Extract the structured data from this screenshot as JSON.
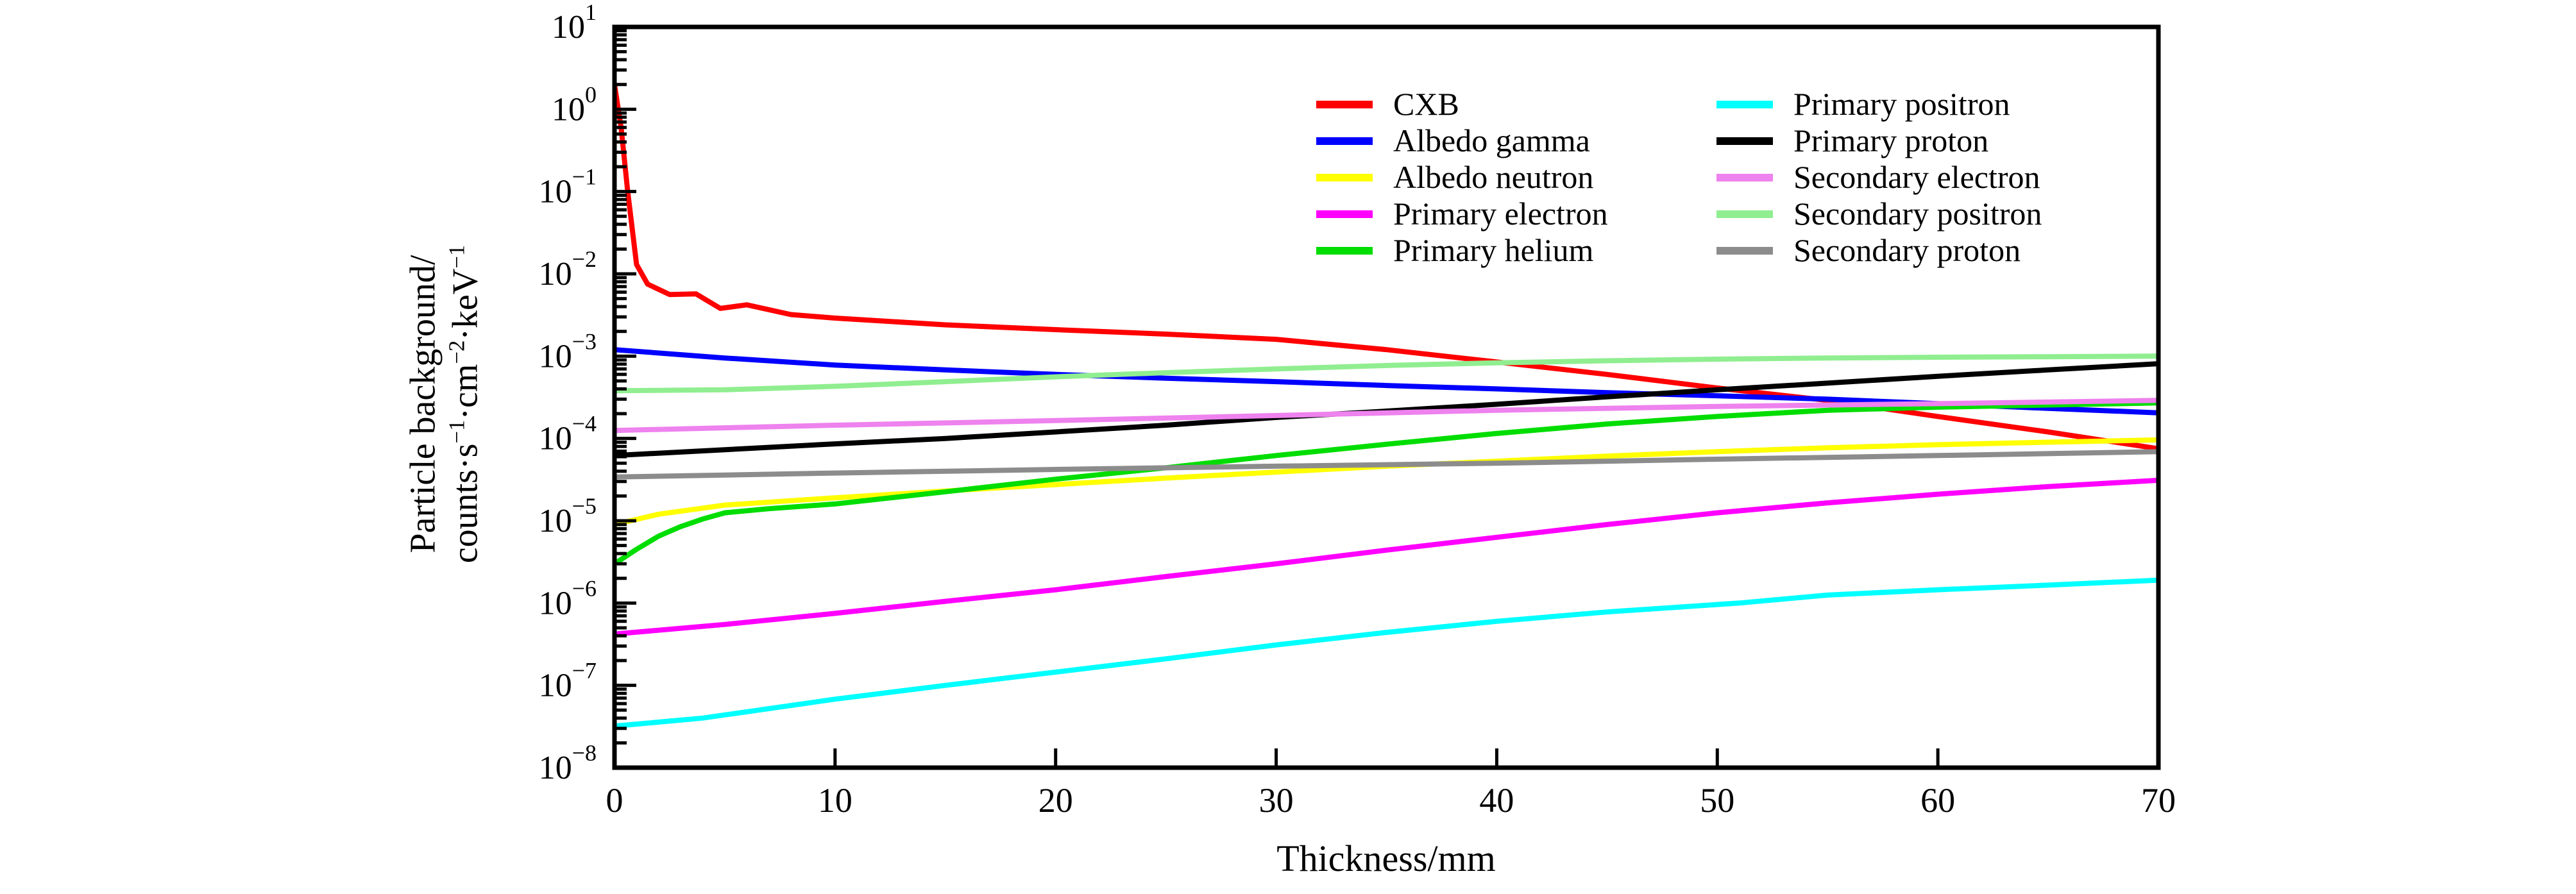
{
  "chart_data": {
    "type": "line",
    "title": "",
    "xlabel": "Thickness/mm",
    "ylabel_line1": "Particle background/",
    "ylabel_line2_tokens": [
      [
        "t",
        "counts·s"
      ],
      [
        "s",
        "−1"
      ],
      [
        "t",
        "·cm"
      ],
      [
        "s",
        "−2"
      ],
      [
        "t",
        "·keV"
      ],
      [
        "s",
        "−1"
      ]
    ],
    "xlim": [
      0,
      70
    ],
    "x_ticks": [
      0,
      10,
      20,
      30,
      40,
      50,
      60,
      70
    ],
    "y_scale": "log",
    "ylog_exponents": [
      1,
      0,
      -1,
      -2,
      -3,
      -4,
      -5,
      -6,
      -7,
      -8
    ],
    "ylim": [
      1e-08,
      10
    ],
    "grid": "off",
    "legend_position": "upper-center-inside, two columns",
    "frame_color": "#000000",
    "series": [
      {
        "name": "CXB",
        "color": "#ff0000",
        "points": [
          [
            0,
            2.0
          ],
          [
            0.3,
            0.6
          ],
          [
            0.6,
            0.1
          ],
          [
            1.0,
            0.013
          ],
          [
            1.5,
            0.0075
          ],
          [
            2.5,
            0.0056
          ],
          [
            3.7,
            0.0057
          ],
          [
            4.8,
            0.0038
          ],
          [
            6,
            0.0042
          ],
          [
            8,
            0.0032
          ],
          [
            10,
            0.0029
          ],
          [
            15,
            0.0024
          ],
          [
            20,
            0.0021
          ],
          [
            25,
            0.00185
          ],
          [
            30,
            0.0016
          ],
          [
            35,
            0.0012
          ],
          [
            40,
            0.00085
          ],
          [
            45,
            0.0006
          ],
          [
            50,
            0.00041
          ],
          [
            55,
            0.00029
          ],
          [
            60,
            0.000185
          ],
          [
            65,
            0.00012
          ],
          [
            70,
            7.5e-05
          ]
        ]
      },
      {
        "name": "Albedo gamma",
        "color": "#0000ff",
        "points": [
          [
            0,
            0.0012
          ],
          [
            5,
            0.00095
          ],
          [
            10,
            0.00078
          ],
          [
            15,
            0.00068
          ],
          [
            20,
            0.0006
          ],
          [
            25,
            0.00054
          ],
          [
            30,
            0.00049
          ],
          [
            35,
            0.00044
          ],
          [
            40,
            0.0004
          ],
          [
            45,
            0.00036
          ],
          [
            50,
            0.00033
          ],
          [
            55,
            0.0003
          ],
          [
            60,
            0.000265
          ],
          [
            65,
            0.000232
          ],
          [
            70,
            0.000205
          ]
        ]
      },
      {
        "name": "Albedo neutron",
        "color": "#ffff00",
        "points": [
          [
            0,
            9e-06
          ],
          [
            2,
            1.2e-05
          ],
          [
            5,
            1.55e-05
          ],
          [
            10,
            1.9e-05
          ],
          [
            15,
            2.3e-05
          ],
          [
            20,
            2.75e-05
          ],
          [
            25,
            3.3e-05
          ],
          [
            30,
            3.9e-05
          ],
          [
            35,
            4.6e-05
          ],
          [
            40,
            5.3e-05
          ],
          [
            45,
            6.1e-05
          ],
          [
            50,
            6.9e-05
          ],
          [
            55,
            7.7e-05
          ],
          [
            60,
            8.4e-05
          ],
          [
            65,
            9e-05
          ],
          [
            70,
            9.6e-05
          ]
        ]
      },
      {
        "name": "Primary electron",
        "color": "#ff00ff",
        "points": [
          [
            0,
            4.2e-07
          ],
          [
            5,
            5.5e-07
          ],
          [
            10,
            7.5e-07
          ],
          [
            15,
            1.05e-06
          ],
          [
            20,
            1.45e-06
          ],
          [
            25,
            2.1e-06
          ],
          [
            30,
            3e-06
          ],
          [
            35,
            4.4e-06
          ],
          [
            40,
            6.3e-06
          ],
          [
            45,
            9e-06
          ],
          [
            50,
            1.25e-05
          ],
          [
            55,
            1.65e-05
          ],
          [
            60,
            2.1e-05
          ],
          [
            65,
            2.6e-05
          ],
          [
            70,
            3.1e-05
          ]
        ]
      },
      {
        "name": "Primary helium",
        "color": "#00dd00",
        "points": [
          [
            0,
            3e-06
          ],
          [
            1,
            4.5e-06
          ],
          [
            2,
            6.5e-06
          ],
          [
            3,
            8.5e-06
          ],
          [
            4,
            1.05e-05
          ],
          [
            5,
            1.25e-05
          ],
          [
            7,
            1.4e-05
          ],
          [
            10,
            1.6e-05
          ],
          [
            15,
            2.25e-05
          ],
          [
            20,
            3.2e-05
          ],
          [
            25,
            4.4e-05
          ],
          [
            30,
            6.2e-05
          ],
          [
            35,
            8.5e-05
          ],
          [
            40,
            0.000115
          ],
          [
            45,
            0.00015
          ],
          [
            50,
            0.000185
          ],
          [
            55,
            0.00022
          ],
          [
            60,
            0.00024
          ],
          [
            65,
            0.000255
          ],
          [
            70,
            0.00027
          ]
        ]
      },
      {
        "name": "Primary positron",
        "color": "#00ffff",
        "points": [
          [
            0,
            3.2e-08
          ],
          [
            4,
            4e-08
          ],
          [
            10,
            6.8e-08
          ],
          [
            15,
            1e-07
          ],
          [
            20,
            1.45e-07
          ],
          [
            25,
            2.1e-07
          ],
          [
            30,
            3.1e-07
          ],
          [
            35,
            4.4e-07
          ],
          [
            40,
            6e-07
          ],
          [
            45,
            7.8e-07
          ],
          [
            51,
            1e-06
          ],
          [
            55,
            1.25e-06
          ],
          [
            60,
            1.45e-06
          ],
          [
            65,
            1.65e-06
          ],
          [
            70,
            1.9e-06
          ]
        ]
      },
      {
        "name": "Primary proton",
        "color": "#000000",
        "points": [
          [
            0,
            6.2e-05
          ],
          [
            5,
            7.3e-05
          ],
          [
            10,
            8.6e-05
          ],
          [
            15,
            0.0001
          ],
          [
            20,
            0.00012
          ],
          [
            25,
            0.000145
          ],
          [
            30,
            0.00018
          ],
          [
            35,
            0.000215
          ],
          [
            40,
            0.00026
          ],
          [
            45,
            0.00032
          ],
          [
            50,
            0.00039
          ],
          [
            55,
            0.00047
          ],
          [
            60,
            0.00057
          ],
          [
            65,
            0.00068
          ],
          [
            70,
            0.00081
          ]
        ]
      },
      {
        "name": "Secondary electron",
        "color": "#ee82ee",
        "points": [
          [
            0,
            0.000125
          ],
          [
            10,
            0.000145
          ],
          [
            20,
            0.000165
          ],
          [
            30,
            0.00019
          ],
          [
            40,
            0.00022
          ],
          [
            50,
            0.000245
          ],
          [
            60,
            0.000265
          ],
          [
            70,
            0.00029
          ]
        ]
      },
      {
        "name": "Secondary positron",
        "color": "#90ee90",
        "points": [
          [
            0,
            0.00038
          ],
          [
            5,
            0.00039
          ],
          [
            10,
            0.00043
          ],
          [
            15,
            0.00049
          ],
          [
            20,
            0.00056
          ],
          [
            25,
            0.00063
          ],
          [
            30,
            0.0007
          ],
          [
            35,
            0.00077
          ],
          [
            40,
            0.00083
          ],
          [
            45,
            0.00088
          ],
          [
            50,
            0.00092
          ],
          [
            55,
            0.00095
          ],
          [
            60,
            0.00097
          ],
          [
            65,
            0.000985
          ],
          [
            70,
            0.001
          ]
        ]
      },
      {
        "name": "Secondary proton",
        "color": "#8c8c8c",
        "points": [
          [
            0,
            3.4e-05
          ],
          [
            10,
            3.8e-05
          ],
          [
            20,
            4.2e-05
          ],
          [
            30,
            4.6e-05
          ],
          [
            40,
            5e-05
          ],
          [
            50,
            5.6e-05
          ],
          [
            60,
            6.2e-05
          ],
          [
            70,
            6.9e-05
          ]
        ]
      }
    ]
  }
}
